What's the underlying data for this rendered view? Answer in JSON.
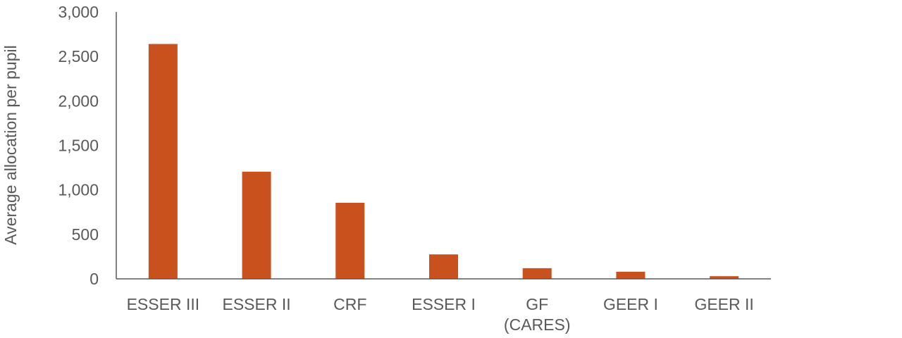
{
  "chart_data": {
    "type": "bar",
    "title": "",
    "xlabel": "",
    "ylabel": "Average allocation per pupil",
    "categories": [
      [
        "ESSER III"
      ],
      [
        "ESSER II"
      ],
      [
        "CRF"
      ],
      [
        "ESSER I"
      ],
      [
        "GF",
        "(CARES)"
      ],
      [
        "GEER I"
      ],
      [
        "GEER II"
      ]
    ],
    "values": [
      2640,
      1205,
      855,
      275,
      120,
      80,
      30
    ],
    "ylim": [
      0,
      3000
    ],
    "yticks": [
      0,
      500,
      1000,
      1500,
      2000,
      2500,
      3000
    ],
    "ytick_labels": [
      "0",
      "500",
      "1,000",
      "1,500",
      "2,000",
      "2,500",
      "3,000"
    ],
    "grid": false,
    "legend": "none",
    "colors": {
      "bar": "#C9511D",
      "axis": "#595959",
      "text": "#595959"
    }
  }
}
